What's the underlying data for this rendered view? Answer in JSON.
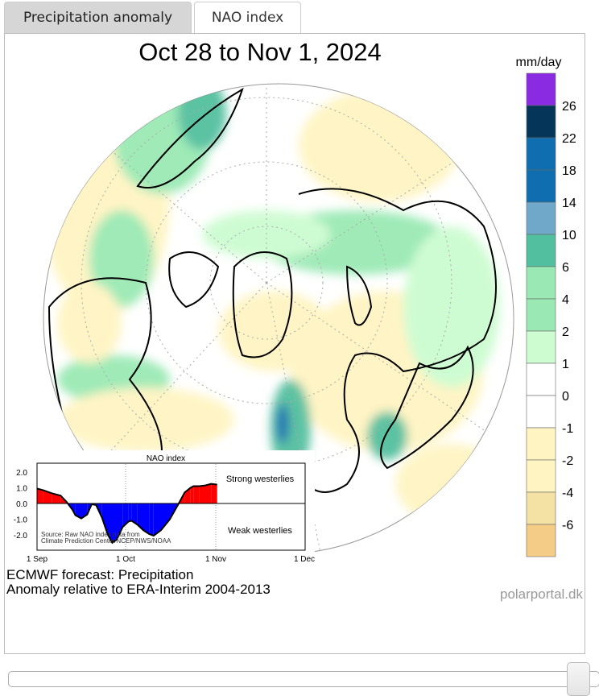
{
  "tabs": [
    {
      "label": "Precipitation anomaly",
      "active": true
    },
    {
      "label": "NAO index",
      "active": false
    }
  ],
  "map": {
    "title": "Oct 28 to Nov 1, 2024",
    "caption_line1": "ECMWF forecast: Precipitation",
    "caption_line2": "Anomaly relative to ERA-Interim 2004-2013",
    "credit": "polarportal.dk"
  },
  "colorbar": {
    "unit": "mm/day",
    "colors": [
      "#8a2be2",
      "#05365a",
      "#0f6eaf",
      "#0f6eaf",
      "#6fa8c8",
      "#52bf9e",
      "#9ae9b4",
      "#9ae9b4",
      "#ccfcd0",
      "#ffffff",
      "#ffffff",
      "#fff4c2",
      "#fff4c2",
      "#f3e2a4",
      "#f4cc87"
    ],
    "labels": [
      "26",
      "22",
      "18",
      "14",
      "10",
      "6",
      "4",
      "2",
      "1",
      "0",
      "-1",
      "-2",
      "-4",
      "-6"
    ]
  },
  "nao_inset": {
    "title": "NAO index",
    "strong_label": "Strong westerlies",
    "weak_label": "Weak westerlies",
    "source_line1": "Source: Raw NAO index data from",
    "source_line2": "Climate Prediction Center/NCEP/NWS/NOAA",
    "y_ticks": [
      "2.0",
      "1.0",
      "0.0",
      "-1.0",
      "-2.0"
    ],
    "x_ticks": [
      "1 Sep",
      "1 Oct",
      "1 Nov",
      "1 Dec"
    ],
    "positive_color": "#ff0000",
    "negative_color": "#0000ff",
    "days_since_sep1": [
      0,
      2,
      5,
      8,
      10,
      12,
      13,
      15,
      17,
      18.5,
      20,
      22,
      24,
      25.5,
      27,
      29,
      31,
      32,
      34,
      36,
      38,
      39.5,
      42,
      45,
      48,
      50,
      52,
      53,
      55,
      57,
      59,
      61
    ],
    "values": [
      0.95,
      0.85,
      0.65,
      0.5,
      0.1,
      -0.4,
      -0.75,
      -0.95,
      -0.7,
      -0.05,
      -0.1,
      -0.9,
      -2.0,
      -2.5,
      -2.3,
      -1.5,
      -1.15,
      -1.1,
      -1.35,
      -1.7,
      -1.95,
      -2.05,
      -1.7,
      -1.0,
      0.0,
      0.7,
      1.0,
      1.1,
      1.1,
      1.15,
      1.25,
      1.2
    ]
  },
  "slider": {
    "value_fraction": 1.0
  }
}
